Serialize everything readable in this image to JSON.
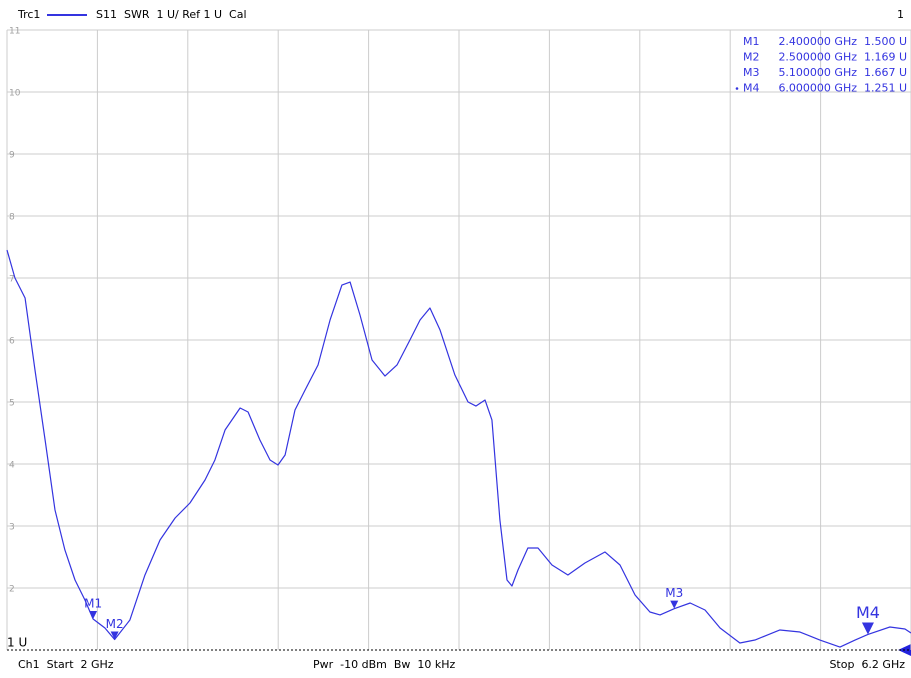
{
  "chart_data": {
    "type": "line",
    "trace_name": "Trc1",
    "trace_info": "S11  SWR  1 U/ Ref 1 U  Cal",
    "channel_number": "1",
    "footer_left": "Ch1  Start  2 GHz",
    "footer_center": "Pwr  -10 dBm  Bw  10 kHz",
    "footer_right": "Stop  6.2 GHz",
    "xlim": [
      2,
      6.2
    ],
    "ylim": [
      1,
      11
    ],
    "xticks": [
      2,
      2.42,
      2.84,
      3.26,
      3.68,
      4.1,
      4.52,
      4.94,
      5.36,
      5.78,
      6.2
    ],
    "yticks": [
      11,
      10,
      9,
      8,
      7,
      6,
      5,
      4,
      3,
      2,
      {
        "value": 1,
        "label": "1 U"
      }
    ],
    "grid": true,
    "x": [
      2.0,
      2.037,
      2.084,
      2.13,
      2.177,
      2.223,
      2.269,
      2.316,
      2.362,
      2.4,
      2.455,
      2.5,
      2.571,
      2.641,
      2.711,
      2.781,
      2.85,
      2.92,
      2.966,
      3.013,
      3.083,
      3.12,
      3.175,
      3.222,
      3.259,
      3.292,
      3.338,
      3.385,
      3.445,
      3.501,
      3.556,
      3.594,
      3.64,
      3.696,
      3.756,
      3.812,
      3.872,
      3.919,
      3.965,
      4.012,
      4.081,
      4.142,
      4.179,
      4.221,
      4.253,
      4.29,
      4.323,
      4.346,
      4.374,
      4.42,
      4.467,
      4.532,
      4.606,
      4.685,
      4.778,
      4.848,
      4.918,
      4.987,
      5.034,
      5.1,
      5.174,
      5.243,
      5.313,
      5.405,
      5.475,
      5.591,
      5.684,
      5.777,
      5.87,
      5.94,
      6.0,
      6.102,
      6.172,
      6.2
    ],
    "series": [
      {
        "name": "S11",
        "color": "#3434e0",
        "values": [
          7.452,
          7.0,
          6.677,
          5.516,
          4.387,
          3.258,
          2.613,
          2.129,
          1.806,
          1.5,
          1.355,
          1.169,
          1.484,
          2.21,
          2.774,
          3.129,
          3.371,
          3.742,
          4.065,
          4.548,
          4.903,
          4.839,
          4.387,
          4.065,
          3.984,
          4.145,
          4.871,
          5.194,
          5.597,
          6.323,
          6.887,
          6.935,
          6.403,
          5.677,
          5.419,
          5.597,
          6.0,
          6.323,
          6.516,
          6.161,
          5.435,
          5.0,
          4.935,
          5.032,
          4.71,
          3.097,
          2.129,
          2.032,
          2.29,
          2.645,
          2.645,
          2.371,
          2.21,
          2.403,
          2.581,
          2.371,
          1.887,
          1.613,
          1.565,
          1.667,
          1.758,
          1.645,
          1.355,
          1.113,
          1.161,
          1.323,
          1.29,
          1.161,
          1.048,
          1.161,
          1.251,
          1.371,
          1.339,
          1.274
        ]
      }
    ],
    "markers": [
      {
        "name": "M1",
        "x": 2.4,
        "y": 1.5,
        "x_label": "2.400000 GHz",
        "y_label": "1.500 U"
      },
      {
        "name": "M2",
        "x": 2.5,
        "y": 1.169,
        "x_label": "2.500000 GHz",
        "y_label": "1.169 U"
      },
      {
        "name": "M3",
        "x": 5.1,
        "y": 1.667,
        "x_label": "5.100000 GHz",
        "y_label": "1.667 U"
      },
      {
        "name": "M4",
        "x": 6.0,
        "y": 1.251,
        "x_label": "6.000000 GHz",
        "y_label": "1.251 U",
        "active": true
      }
    ]
  }
}
